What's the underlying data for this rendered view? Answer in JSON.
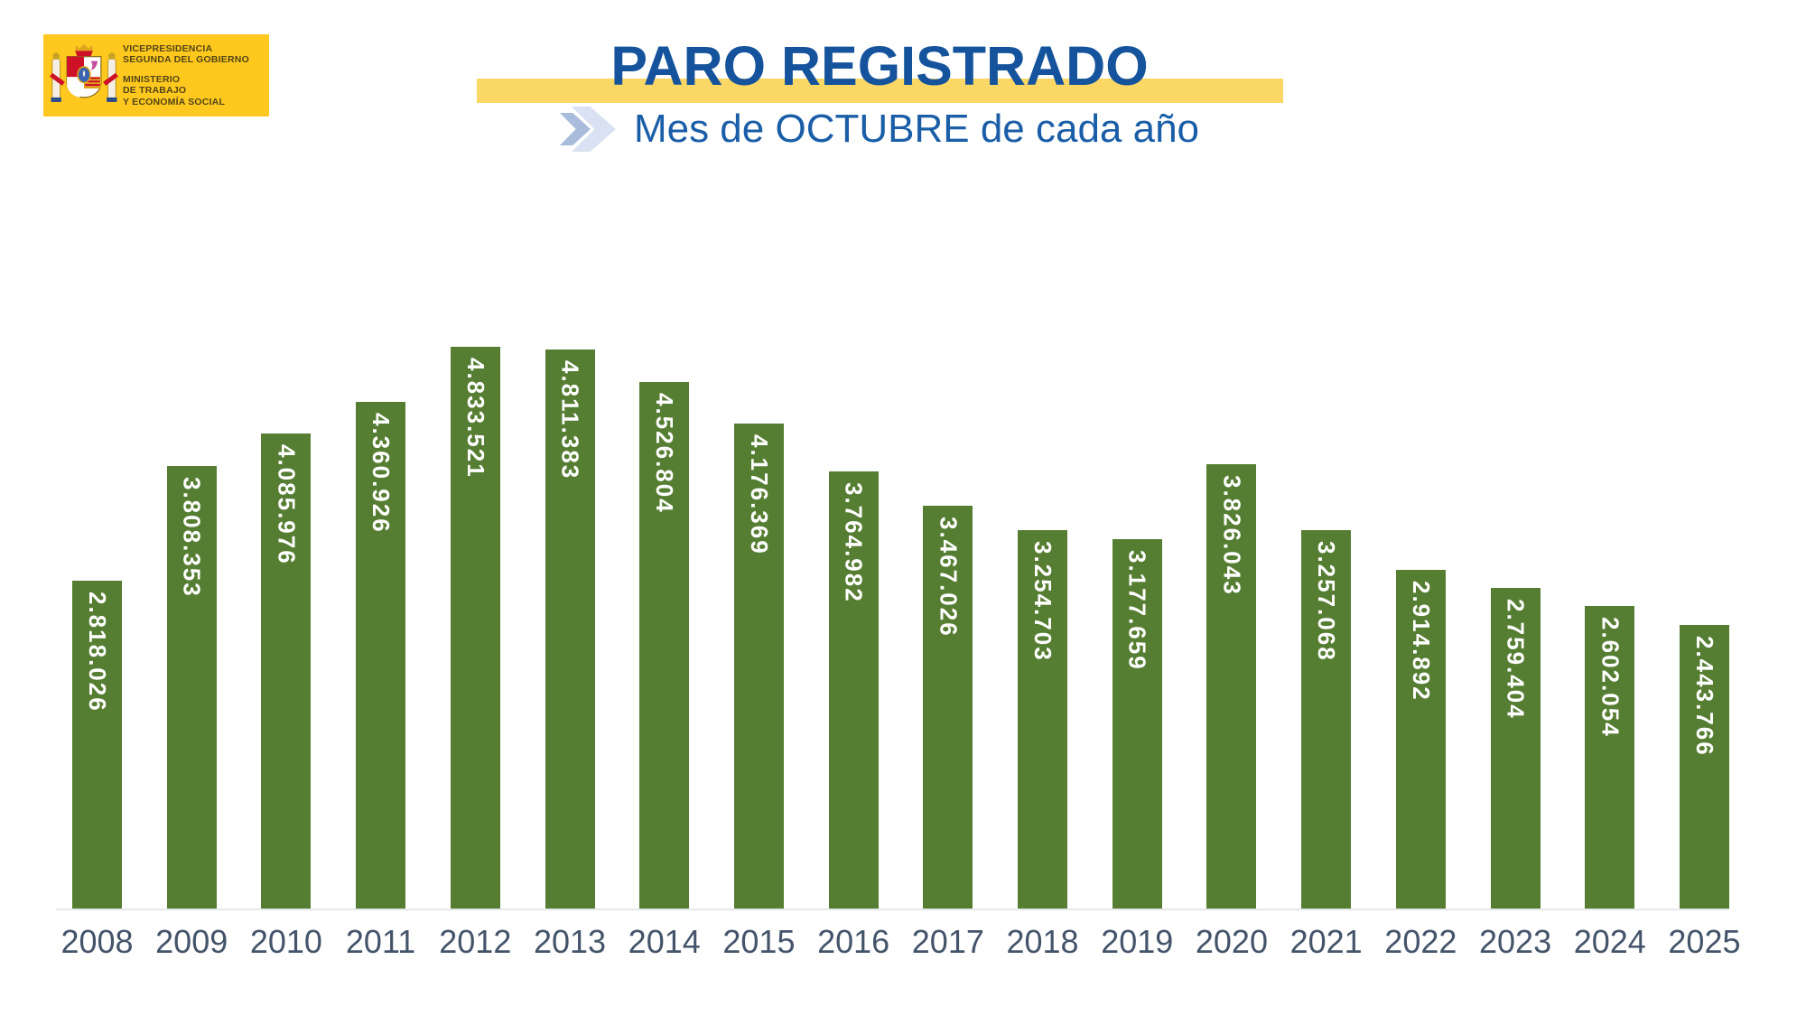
{
  "logo": {
    "department_line1": "VICEPRESIDENCIA",
    "department_line2": "SEGUNDA DEL GOBIERNO",
    "ministry_line1": "MINISTERIO",
    "ministry_line2": "DE TRABAJO",
    "ministry_line3": "Y ECONOMÍA SOCIAL",
    "background_color": "#FFC81E",
    "text_color": "#514516",
    "emblem_icon": "spain-coat-of-arms-icon"
  },
  "header": {
    "title": "PARO REGISTRADO",
    "subtitle": "Mes de OCTUBRE de cada año",
    "title_color": "#15539C",
    "subtitle_color": "#1A5EA8",
    "band_color": "#FBD866",
    "chevron_icon": "chevron-right-icon",
    "chevron_colors": [
      "#A9BCDB",
      "#D9E1F2"
    ]
  },
  "chart_data": {
    "type": "bar",
    "title": "PARO REGISTRADO",
    "subtitle": "Mes de OCTUBRE de cada año",
    "categories": [
      "2008",
      "2009",
      "2010",
      "2011",
      "2012",
      "2013",
      "2014",
      "2015",
      "2016",
      "2017",
      "2018",
      "2019",
      "2020",
      "2021",
      "2022",
      "2023",
      "2024",
      "2025"
    ],
    "values": [
      2818026,
      3808353,
      4085976,
      4360926,
      4833521,
      4811383,
      4526804,
      4176369,
      3764982,
      3467026,
      3254703,
      3177659,
      3826043,
      3257068,
      2914892,
      2759404,
      2602054,
      2443766
    ],
    "value_labels": [
      "2.818.026",
      "3.808.353",
      "4.085.976",
      "4.360.926",
      "4.833.521",
      "4.811.383",
      "4.526.804",
      "4.176.369",
      "3.764.982",
      "3.467.026",
      "3.254.703",
      "3.177.659",
      "3.826.043",
      "3.257.068",
      "2.914.892",
      "2.759.404",
      "2.602.054",
      "2.443.766"
    ],
    "xlabel": "",
    "ylabel": "",
    "ylim": [
      0,
      4833521
    ],
    "grid": false,
    "legend": false,
    "bar_color": "#567E32",
    "value_label_color": "#FFFFFF",
    "axis_label_color": "#44546A",
    "value_label_orientation": "vertical"
  }
}
